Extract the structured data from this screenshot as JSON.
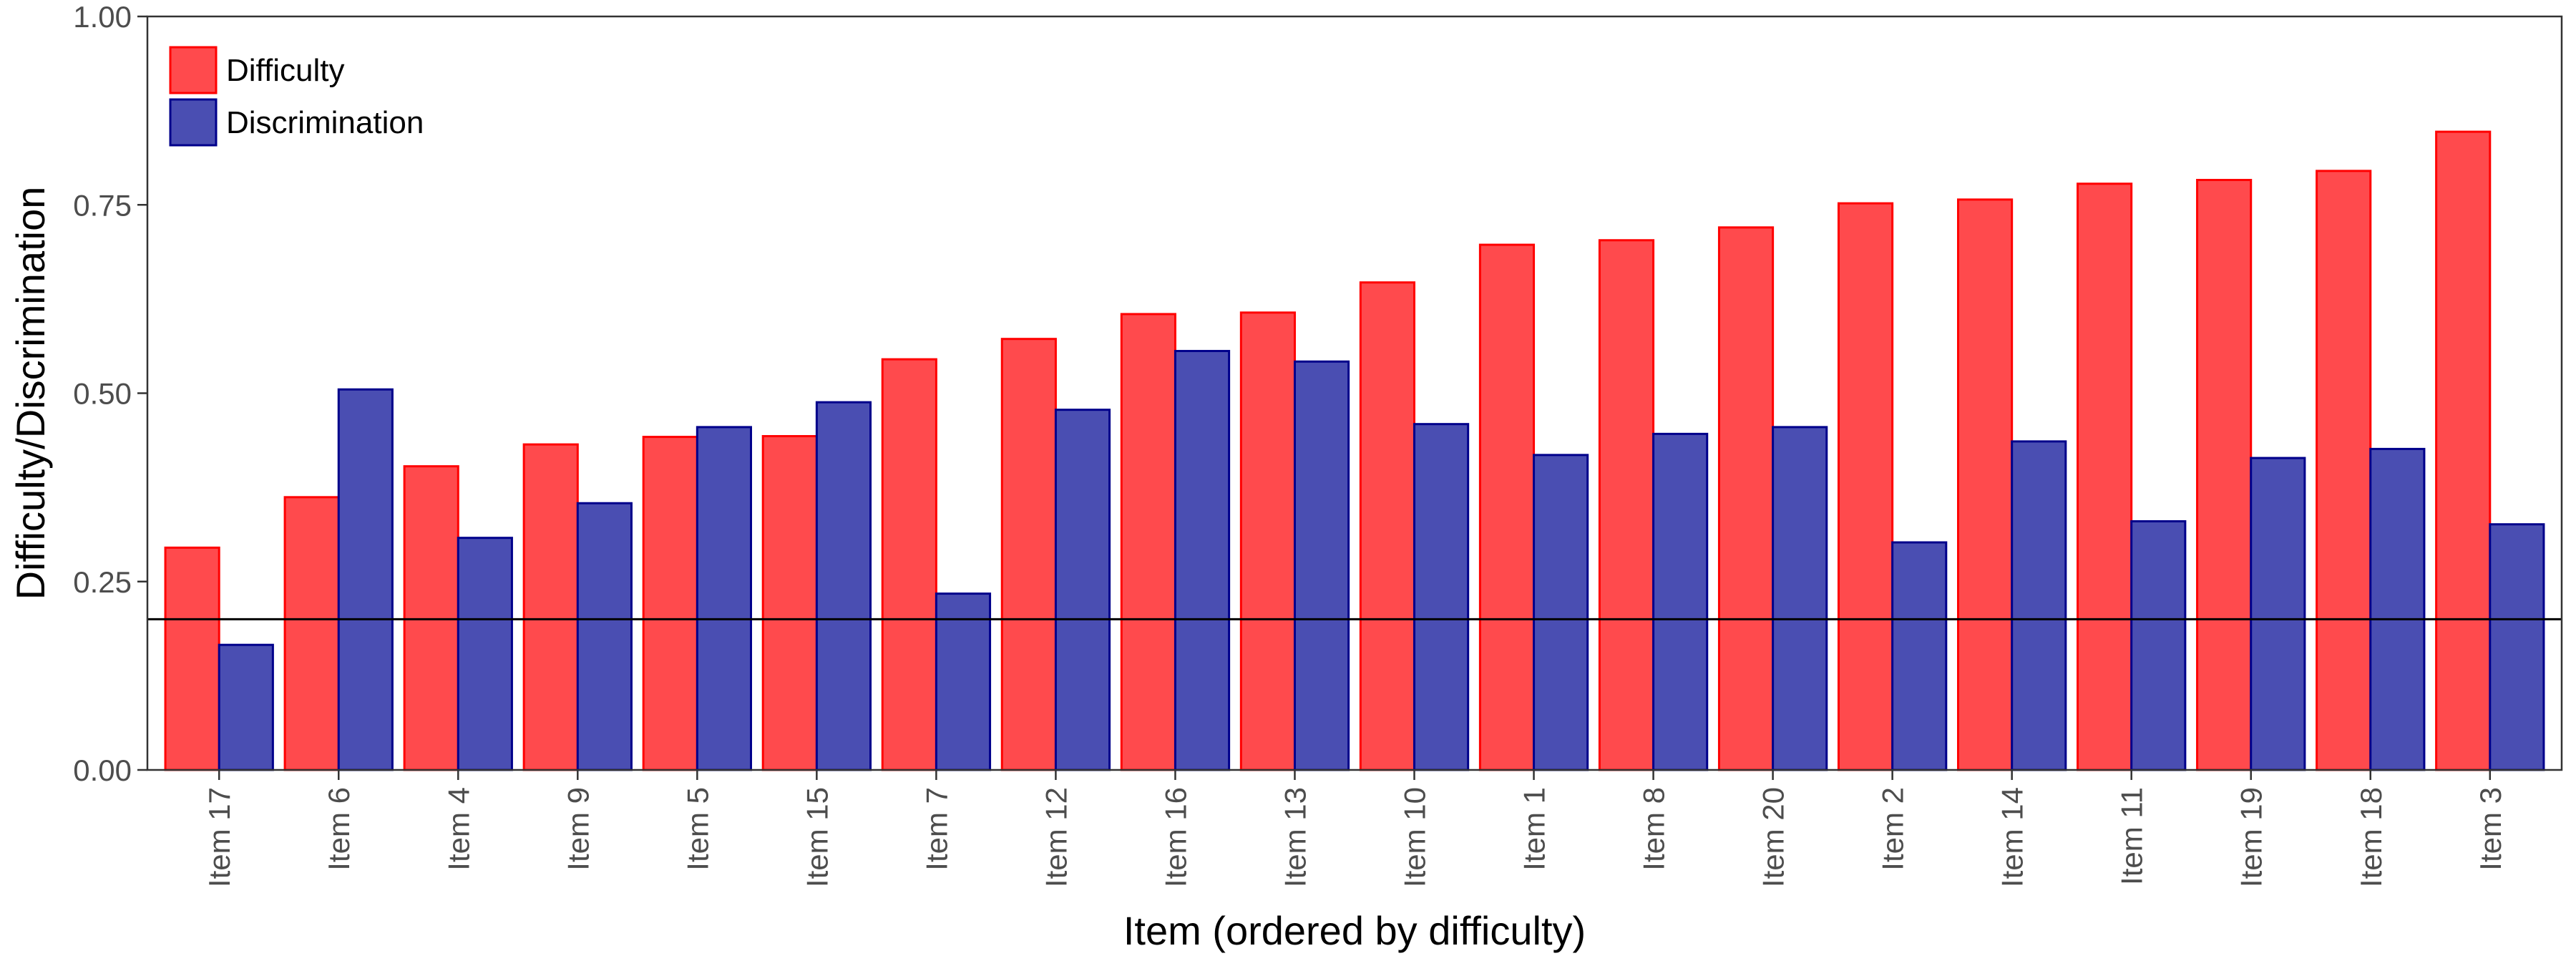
{
  "chart_data": {
    "type": "bar",
    "xlabel": "Item (ordered by difficulty)",
    "ylabel": "Difficulty/Discrimination",
    "ylim": [
      0,
      1
    ],
    "yticks": [
      "0.00",
      "0.25",
      "0.50",
      "0.75",
      "1.00"
    ],
    "ytick_values": [
      0,
      0.25,
      0.5,
      0.75,
      1.0
    ],
    "reference_line": 0.2,
    "legend_position": "top-left",
    "grid": false,
    "categories": [
      "Item 17",
      "Item 6",
      "Item 4",
      "Item 9",
      "Item 5",
      "Item 15",
      "Item 7",
      "Item 12",
      "Item 16",
      "Item 13",
      "Item 10",
      "Item 1",
      "Item 8",
      "Item 20",
      "Item 2",
      "Item 14",
      "Item 11",
      "Item 19",
      "Item 18",
      "Item 3"
    ],
    "series": [
      {
        "name": "Difficulty",
        "color": "#ff4a4d",
        "stroke": "#ff0000",
        "values": [
          0.295,
          0.362,
          0.403,
          0.432,
          0.442,
          0.443,
          0.545,
          0.572,
          0.605,
          0.607,
          0.647,
          0.697,
          0.703,
          0.72,
          0.752,
          0.757,
          0.778,
          0.783,
          0.795,
          0.847
        ]
      },
      {
        "name": "Discrimination",
        "color": "#4a4eb2",
        "stroke": "#00008b",
        "values": [
          0.166,
          0.505,
          0.308,
          0.354,
          0.455,
          0.488,
          0.234,
          0.478,
          0.556,
          0.542,
          0.459,
          0.418,
          0.446,
          0.455,
          0.302,
          0.436,
          0.33,
          0.414,
          0.426,
          0.326
        ]
      }
    ]
  }
}
